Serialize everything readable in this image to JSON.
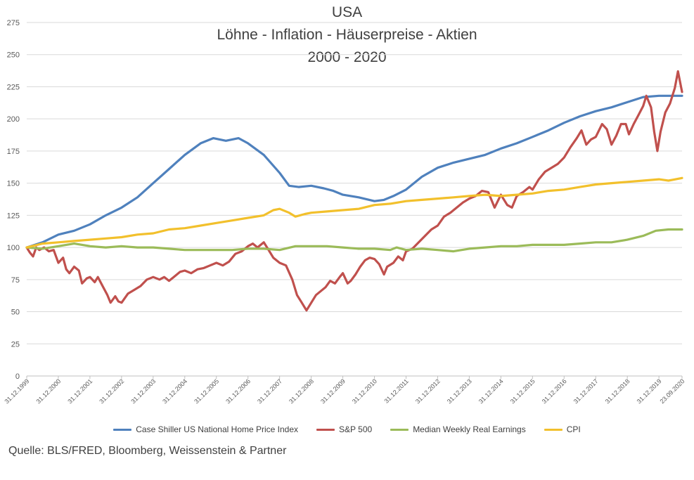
{
  "chart_data": {
    "type": "line",
    "title_lines": [
      "USA",
      "Löhne - Inflation - Häuserpreise - Aktien",
      "2000 - 2020"
    ],
    "ylim": [
      0,
      275
    ],
    "yticks": [
      0,
      25,
      50,
      75,
      100,
      125,
      150,
      175,
      200,
      225,
      250,
      275
    ],
    "xlim": [
      1999.999,
      2020.73
    ],
    "xticks": [
      {
        "label": "31.12.1999",
        "t": 1999.999
      },
      {
        "label": "31.12.2000",
        "t": 2000.999
      },
      {
        "label": "31.12.2001",
        "t": 2001.999
      },
      {
        "label": "31.12.2002",
        "t": 2002.999
      },
      {
        "label": "31.12.2003",
        "t": 2003.999
      },
      {
        "label": "31.12.2004",
        "t": 2004.999
      },
      {
        "label": "31.12.2005",
        "t": 2005.999
      },
      {
        "label": "31.12.2006",
        "t": 2006.999
      },
      {
        "label": "31.12.2007",
        "t": 2007.999
      },
      {
        "label": "31.12.2008",
        "t": 2008.999
      },
      {
        "label": "31.12.2009",
        "t": 2009.999
      },
      {
        "label": "31.12.2010",
        "t": 2010.999
      },
      {
        "label": "31.12.2011",
        "t": 2011.999
      },
      {
        "label": "31.12.2012",
        "t": 2012.999
      },
      {
        "label": "31.12.2013",
        "t": 2013.999
      },
      {
        "label": "31.12.2014",
        "t": 2014.999
      },
      {
        "label": "31.12.2015",
        "t": 2015.999
      },
      {
        "label": "31.12.2016",
        "t": 2016.999
      },
      {
        "label": "31.12.2017",
        "t": 2017.999
      },
      {
        "label": "31.12.2018",
        "t": 2018.999
      },
      {
        "label": "31.12.2019",
        "t": 2019.999
      },
      {
        "label": "23.09.2020",
        "t": 2020.73
      }
    ],
    "grid": "horizontal",
    "legend_position": "bottom",
    "series": [
      {
        "name": "Case Shiller US National Home Price Index",
        "color": "#4f81bd",
        "points": [
          [
            1999.999,
            100
          ],
          [
            2000.5,
            104
          ],
          [
            2001.0,
            110
          ],
          [
            2001.5,
            113
          ],
          [
            2002.0,
            118
          ],
          [
            2002.5,
            125
          ],
          [
            2003.0,
            131
          ],
          [
            2003.5,
            139
          ],
          [
            2004.0,
            150
          ],
          [
            2004.5,
            161
          ],
          [
            2005.0,
            172
          ],
          [
            2005.5,
            181
          ],
          [
            2005.9,
            185
          ],
          [
            2006.3,
            183
          ],
          [
            2006.7,
            185
          ],
          [
            2007.0,
            181
          ],
          [
            2007.5,
            172
          ],
          [
            2008.0,
            158
          ],
          [
            2008.3,
            148
          ],
          [
            2008.6,
            147
          ],
          [
            2009.0,
            148
          ],
          [
            2009.4,
            146
          ],
          [
            2009.7,
            144
          ],
          [
            2010.0,
            141
          ],
          [
            2010.5,
            139
          ],
          [
            2011.0,
            136
          ],
          [
            2011.3,
            137
          ],
          [
            2011.6,
            140
          ],
          [
            2012.0,
            145
          ],
          [
            2012.5,
            155
          ],
          [
            2013.0,
            162
          ],
          [
            2013.5,
            166
          ],
          [
            2014.0,
            169
          ],
          [
            2014.5,
            172
          ],
          [
            2015.0,
            177
          ],
          [
            2015.5,
            181
          ],
          [
            2016.0,
            186
          ],
          [
            2016.5,
            191
          ],
          [
            2017.0,
            197
          ],
          [
            2017.5,
            202
          ],
          [
            2018.0,
            206
          ],
          [
            2018.5,
            209
          ],
          [
            2019.0,
            213
          ],
          [
            2019.5,
            217
          ],
          [
            2020.0,
            218
          ],
          [
            2020.73,
            218
          ]
        ]
      },
      {
        "name": "S&P 500",
        "color": "#c0504d",
        "points": [
          [
            1999.999,
            100
          ],
          [
            2000.1,
            96
          ],
          [
            2000.2,
            93
          ],
          [
            2000.3,
            100
          ],
          [
            2000.4,
            98
          ],
          [
            2000.55,
            100
          ],
          [
            2000.7,
            97
          ],
          [
            2000.85,
            98
          ],
          [
            2001.0,
            88
          ],
          [
            2001.15,
            92
          ],
          [
            2001.25,
            83
          ],
          [
            2001.35,
            80
          ],
          [
            2001.5,
            85
          ],
          [
            2001.65,
            82
          ],
          [
            2001.75,
            72
          ],
          [
            2001.9,
            76
          ],
          [
            2002.0,
            77
          ],
          [
            2002.15,
            73
          ],
          [
            2002.25,
            77
          ],
          [
            2002.4,
            70
          ],
          [
            2002.55,
            63
          ],
          [
            2002.65,
            57
          ],
          [
            2002.8,
            62
          ],
          [
            2002.9,
            58
          ],
          [
            2003.0,
            57
          ],
          [
            2003.2,
            64
          ],
          [
            2003.4,
            67
          ],
          [
            2003.6,
            70
          ],
          [
            2003.8,
            75
          ],
          [
            2004.0,
            77
          ],
          [
            2004.2,
            75
          ],
          [
            2004.35,
            77
          ],
          [
            2004.5,
            74
          ],
          [
            2004.65,
            77
          ],
          [
            2004.85,
            81
          ],
          [
            2005.0,
            82
          ],
          [
            2005.2,
            80
          ],
          [
            2005.4,
            83
          ],
          [
            2005.6,
            84
          ],
          [
            2005.8,
            86
          ],
          [
            2006.0,
            88
          ],
          [
            2006.2,
            86
          ],
          [
            2006.4,
            89
          ],
          [
            2006.6,
            95
          ],
          [
            2006.8,
            97
          ],
          [
            2007.0,
            101
          ],
          [
            2007.15,
            103
          ],
          [
            2007.3,
            100
          ],
          [
            2007.5,
            104
          ],
          [
            2007.65,
            98
          ],
          [
            2007.8,
            92
          ],
          [
            2008.0,
            88
          ],
          [
            2008.2,
            86
          ],
          [
            2008.4,
            75
          ],
          [
            2008.55,
            63
          ],
          [
            2008.7,
            57
          ],
          [
            2008.85,
            51
          ],
          [
            2009.0,
            57
          ],
          [
            2009.15,
            63
          ],
          [
            2009.3,
            66
          ],
          [
            2009.45,
            69
          ],
          [
            2009.6,
            74
          ],
          [
            2009.75,
            72
          ],
          [
            2009.9,
            77
          ],
          [
            2010.0,
            80
          ],
          [
            2010.15,
            72
          ],
          [
            2010.25,
            74
          ],
          [
            2010.4,
            79
          ],
          [
            2010.55,
            85
          ],
          [
            2010.7,
            90
          ],
          [
            2010.85,
            92
          ],
          [
            2011.0,
            91
          ],
          [
            2011.15,
            87
          ],
          [
            2011.3,
            79
          ],
          [
            2011.4,
            85
          ],
          [
            2011.6,
            88
          ],
          [
            2011.75,
            93
          ],
          [
            2011.9,
            90
          ],
          [
            2012.0,
            97
          ],
          [
            2012.2,
            99
          ],
          [
            2012.4,
            104
          ],
          [
            2012.6,
            109
          ],
          [
            2012.8,
            114
          ],
          [
            2013.0,
            117
          ],
          [
            2013.2,
            124
          ],
          [
            2013.4,
            127
          ],
          [
            2013.6,
            131
          ],
          [
            2013.8,
            135
          ],
          [
            2014.0,
            138
          ],
          [
            2014.2,
            140
          ],
          [
            2014.4,
            144
          ],
          [
            2014.6,
            143
          ],
          [
            2014.8,
            131
          ],
          [
            2015.0,
            141
          ],
          [
            2015.2,
            133
          ],
          [
            2015.35,
            131
          ],
          [
            2015.5,
            140
          ],
          [
            2015.7,
            143
          ],
          [
            2015.9,
            147
          ],
          [
            2016.0,
            145
          ],
          [
            2016.2,
            153
          ],
          [
            2016.4,
            159
          ],
          [
            2016.6,
            162
          ],
          [
            2016.8,
            165
          ],
          [
            2017.0,
            170
          ],
          [
            2017.2,
            178
          ],
          [
            2017.4,
            185
          ],
          [
            2017.55,
            191
          ],
          [
            2017.7,
            180
          ],
          [
            2017.85,
            184
          ],
          [
            2018.0,
            186
          ],
          [
            2018.2,
            196
          ],
          [
            2018.35,
            192
          ],
          [
            2018.5,
            180
          ],
          [
            2018.65,
            187
          ],
          [
            2018.8,
            196
          ],
          [
            2018.95,
            196
          ],
          [
            2019.05,
            188
          ],
          [
            2019.2,
            196
          ],
          [
            2019.35,
            203
          ],
          [
            2019.5,
            210
          ],
          [
            2019.6,
            218
          ],
          [
            2019.75,
            209
          ],
          [
            2019.85,
            190
          ],
          [
            2019.95,
            175
          ],
          [
            2020.05,
            190
          ],
          [
            2020.2,
            205
          ],
          [
            2020.35,
            212
          ],
          [
            2020.5,
            224
          ],
          [
            2020.6,
            237
          ],
          [
            2020.73,
            221
          ]
        ]
      },
      {
        "name": "Median Weekly Real Earnings",
        "color": "#9bbb59",
        "points": [
          [
            1999.999,
            100
          ],
          [
            2000.5,
            99
          ],
          [
            2001.0,
            101
          ],
          [
            2001.5,
            103
          ],
          [
            2002.0,
            101
          ],
          [
            2002.5,
            100
          ],
          [
            2003.0,
            101
          ],
          [
            2003.5,
            100
          ],
          [
            2004.0,
            100
          ],
          [
            2004.5,
            99
          ],
          [
            2005.0,
            98
          ],
          [
            2005.5,
            98
          ],
          [
            2006.0,
            98
          ],
          [
            2006.5,
            98
          ],
          [
            2007.0,
            99
          ],
          [
            2007.5,
            99
          ],
          [
            2008.0,
            98
          ],
          [
            2008.5,
            101
          ],
          [
            2009.0,
            101
          ],
          [
            2009.5,
            101
          ],
          [
            2010.0,
            100
          ],
          [
            2010.5,
            99
          ],
          [
            2011.0,
            99
          ],
          [
            2011.5,
            98
          ],
          [
            2011.7,
            100
          ],
          [
            2012.0,
            98
          ],
          [
            2012.5,
            99
          ],
          [
            2013.0,
            98
          ],
          [
            2013.5,
            97
          ],
          [
            2014.0,
            99
          ],
          [
            2014.5,
            100
          ],
          [
            2015.0,
            101
          ],
          [
            2015.5,
            101
          ],
          [
            2016.0,
            102
          ],
          [
            2016.5,
            102
          ],
          [
            2017.0,
            102
          ],
          [
            2017.5,
            103
          ],
          [
            2018.0,
            104
          ],
          [
            2018.5,
            104
          ],
          [
            2019.0,
            106
          ],
          [
            2019.5,
            109
          ],
          [
            2019.9,
            113
          ],
          [
            2020.3,
            114
          ],
          [
            2020.73,
            114
          ]
        ]
      },
      {
        "name": "CPI",
        "color": "#f2c02c",
        "points": [
          [
            1999.999,
            100
          ],
          [
            2000.5,
            103
          ],
          [
            2001.0,
            104
          ],
          [
            2001.5,
            105
          ],
          [
            2002.0,
            106
          ],
          [
            2002.5,
            107
          ],
          [
            2003.0,
            108
          ],
          [
            2003.5,
            110
          ],
          [
            2004.0,
            111
          ],
          [
            2004.5,
            114
          ],
          [
            2005.0,
            115
          ],
          [
            2005.5,
            117
          ],
          [
            2006.0,
            119
          ],
          [
            2006.5,
            121
          ],
          [
            2007.0,
            123
          ],
          [
            2007.5,
            125
          ],
          [
            2007.8,
            129
          ],
          [
            2008.0,
            130
          ],
          [
            2008.3,
            127
          ],
          [
            2008.5,
            124
          ],
          [
            2008.8,
            126
          ],
          [
            2009.0,
            127
          ],
          [
            2009.5,
            128
          ],
          [
            2010.0,
            129
          ],
          [
            2010.5,
            130
          ],
          [
            2011.0,
            133
          ],
          [
            2011.5,
            134
          ],
          [
            2012.0,
            136
          ],
          [
            2012.5,
            137
          ],
          [
            2013.0,
            138
          ],
          [
            2013.5,
            139
          ],
          [
            2014.0,
            140
          ],
          [
            2014.5,
            141
          ],
          [
            2015.0,
            140
          ],
          [
            2015.5,
            141
          ],
          [
            2016.0,
            142
          ],
          [
            2016.5,
            144
          ],
          [
            2017.0,
            145
          ],
          [
            2017.5,
            147
          ],
          [
            2018.0,
            149
          ],
          [
            2018.5,
            150
          ],
          [
            2019.0,
            151
          ],
          [
            2019.5,
            152
          ],
          [
            2020.0,
            153
          ],
          [
            2020.3,
            152
          ],
          [
            2020.73,
            154
          ]
        ]
      }
    ]
  },
  "source_text": "Quelle: BLS/FRED, Bloomberg, Weissenstein & Partner"
}
